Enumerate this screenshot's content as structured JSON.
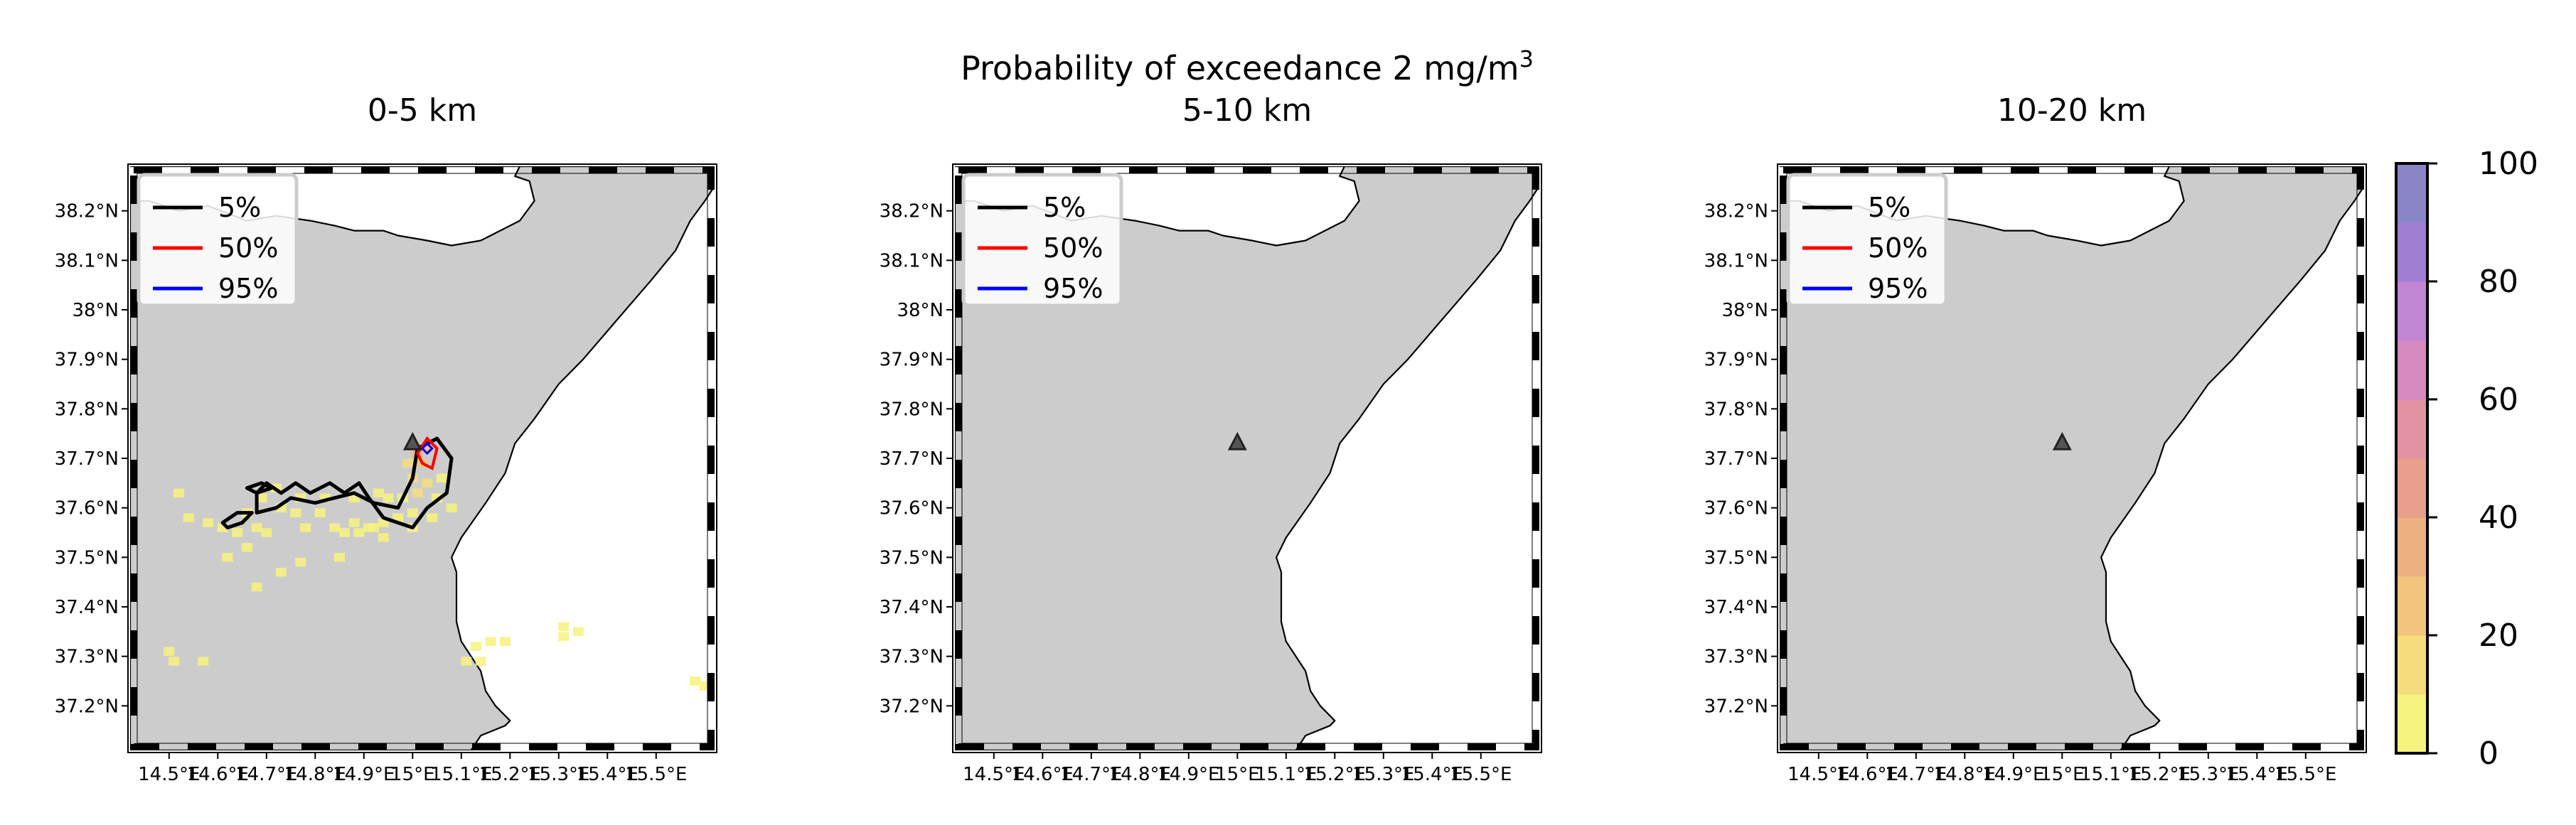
{
  "figure": {
    "suptitle": "Probability of exceedance 2 mg/m",
    "suptitle_sup": "3"
  },
  "panels": [
    {
      "title": "0-5 km"
    },
    {
      "title": "5-10 km"
    },
    {
      "title": "10-20 km"
    }
  ],
  "map_axes": {
    "x_ticks": [
      "14.5°E",
      "14.6°E",
      "14.7°E",
      "14.8°E",
      "14.9°E",
      "15°E",
      "15.1°E",
      "15.2°E",
      "15.3°E",
      "15.4°E",
      "15.5°E"
    ],
    "y_ticks": [
      "38.2°N",
      "38.1°N",
      "38°N",
      "37.9°N",
      "37.8°N",
      "37.7°N",
      "37.6°N",
      "37.5°N",
      "37.4°N",
      "37.3°N",
      "37.2°N"
    ],
    "lon_range": [
      14.42,
      15.62
    ],
    "lat_range": [
      37.11,
      38.29
    ],
    "land_color": "#cccccc",
    "sea_color": "#ffffff"
  },
  "legend": {
    "placement": "upper-left",
    "entries": [
      {
        "label": "5%",
        "color": "#000000"
      },
      {
        "label": "50%",
        "color": "#ff0000"
      },
      {
        "label": "95%",
        "color": "#0000ff"
      }
    ]
  },
  "colorbar": {
    "ticks": [
      "0",
      "20",
      "40",
      "60",
      "80",
      "100"
    ],
    "range": [
      0,
      100
    ],
    "colors": [
      "#f6f27e",
      "#f5dd7d",
      "#f2c47e",
      "#edb081",
      "#e89f8b",
      "#e293a1",
      "#d68ac0",
      "#c285d4",
      "#a07fd3",
      "#8a86c6"
    ]
  },
  "volcano": {
    "lon": 15.0,
    "lat": 37.73,
    "icon": "triangle-icon"
  },
  "chart_data": {
    "type": "heatmap",
    "panels": [
      {
        "title": "0-5 km",
        "has_data": true,
        "cells": [
          [
            14.52,
            37.63,
            1
          ],
          [
            14.54,
            37.58,
            2
          ],
          [
            14.58,
            37.57,
            3
          ],
          [
            14.61,
            37.56,
            4
          ],
          [
            14.64,
            37.55,
            5
          ],
          [
            14.66,
            37.59,
            6
          ],
          [
            14.68,
            37.56,
            4
          ],
          [
            14.7,
            37.55,
            3
          ],
          [
            14.66,
            37.52,
            2
          ],
          [
            14.62,
            37.5,
            1
          ],
          [
            14.69,
            37.62,
            5
          ],
          [
            14.73,
            37.6,
            6
          ],
          [
            14.76,
            37.59,
            7
          ],
          [
            14.78,
            37.56,
            3
          ],
          [
            14.81,
            37.59,
            5
          ],
          [
            14.84,
            37.56,
            4
          ],
          [
            14.86,
            37.55,
            3
          ],
          [
            14.88,
            37.57,
            5
          ],
          [
            14.91,
            37.56,
            4
          ],
          [
            14.94,
            37.57,
            5
          ],
          [
            14.97,
            37.58,
            6
          ],
          [
            15.0,
            37.59,
            7
          ],
          [
            14.98,
            37.62,
            9
          ],
          [
            15.01,
            37.63,
            11
          ],
          [
            15.03,
            37.65,
            13
          ],
          [
            15.0,
            37.66,
            15
          ],
          [
            15.02,
            37.69,
            22
          ],
          [
            15.01,
            37.71,
            30
          ],
          [
            15.03,
            37.72,
            25
          ],
          [
            14.99,
            37.69,
            17
          ],
          [
            15.05,
            37.62,
            8
          ],
          [
            15.06,
            37.66,
            6
          ],
          [
            14.95,
            37.62,
            7
          ],
          [
            14.93,
            37.63,
            6
          ],
          [
            14.88,
            37.62,
            6
          ],
          [
            14.82,
            37.62,
            7
          ],
          [
            14.77,
            37.62,
            6
          ],
          [
            14.72,
            37.64,
            4
          ],
          [
            14.85,
            37.5,
            2
          ],
          [
            14.77,
            37.49,
            2
          ],
          [
            14.73,
            37.47,
            1
          ],
          [
            14.68,
            37.44,
            1
          ],
          [
            14.92,
            37.56,
            3
          ],
          [
            14.94,
            37.54,
            2
          ],
          [
            15.0,
            37.56,
            3
          ],
          [
            15.04,
            37.58,
            4
          ],
          [
            15.08,
            37.6,
            2
          ],
          [
            14.89,
            37.55,
            3
          ],
          [
            14.5,
            37.31,
            2
          ],
          [
            14.51,
            37.29,
            1
          ],
          [
            14.57,
            37.29,
            1
          ],
          [
            15.13,
            37.32,
            2
          ],
          [
            15.16,
            37.33,
            3
          ],
          [
            15.19,
            37.33,
            2
          ],
          [
            15.11,
            37.29,
            2
          ],
          [
            15.14,
            37.29,
            1
          ],
          [
            15.31,
            37.36,
            3
          ],
          [
            15.31,
            37.34,
            2
          ],
          [
            15.34,
            37.35,
            1
          ],
          [
            15.58,
            37.25,
            2
          ],
          [
            15.6,
            37.24,
            1
          ]
        ]
      },
      {
        "title": "5-10 km",
        "has_data": false,
        "cells": []
      },
      {
        "title": "10-20 km",
        "has_data": false,
        "cells": []
      }
    ],
    "contours": [
      {
        "level": "5%",
        "color": "#000000"
      },
      {
        "level": "50%",
        "color": "#ff0000"
      },
      {
        "level": "95%",
        "color": "#0000ff"
      }
    ]
  }
}
